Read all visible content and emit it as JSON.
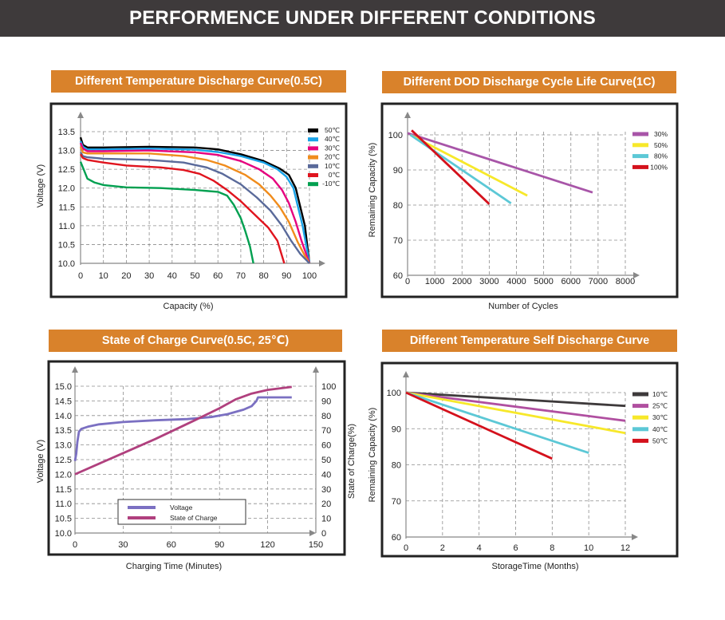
{
  "header": {
    "title": "PERFORMENCE UNDER DIFFERENT CONDITIONS"
  },
  "colors": {
    "banner_bg": "#3e3a3b",
    "title_bg": "#d9822b",
    "s50": "#000000",
    "s40": "#1aa3e8",
    "s30": "#e6007e",
    "s20": "#f08c1c",
    "s10": "#5a6a9a",
    "s0": "#e0141e",
    "sm10": "#00a050",
    "p30": "#a855a8",
    "p50": "#f7e82a",
    "p80": "#5cc8d6",
    "p100": "#d4111c",
    "sd10": "#3e3a3b",
    "sd25": "#b04fa0",
    "sd30": "#f7e82a",
    "sd40": "#5cc8d6",
    "sd50": "#d4111c",
    "voltage_line": "#7b70c2",
    "soc_line": "#b0407e"
  },
  "chart_data": [
    {
      "id": "temp-discharge",
      "type": "line",
      "title": "Different Temperature Discharge Curve(0.5C)",
      "xlabel": "Capacity (%)",
      "ylabel": "Voltage (V)",
      "xlim": [
        0,
        100
      ],
      "ylim": [
        10.0,
        13.5
      ],
      "x_ticks": [
        "0",
        "10",
        "20",
        "30",
        "40",
        "50",
        "60",
        "70",
        "80",
        "90",
        "100"
      ],
      "x_tick_values": [
        0,
        10,
        20,
        30,
        40,
        50,
        60,
        70,
        80,
        90,
        100
      ],
      "y_ticks": [
        "13.5",
        "13.0",
        "12.5",
        "12.0",
        "11.5",
        "11.0",
        "10.5",
        "10.0"
      ],
      "y_tick_values": [
        13.5,
        13.0,
        12.5,
        12.0,
        11.5,
        11.0,
        10.5,
        10.0
      ],
      "series": [
        {
          "name": "50℃",
          "color": "#000000",
          "points": [
            [
              0,
              13.35
            ],
            [
              1,
              13.15
            ],
            [
              3,
              13.08
            ],
            [
              10,
              13.08
            ],
            [
              30,
              13.1
            ],
            [
              50,
              13.08
            ],
            [
              60,
              13.03
            ],
            [
              70,
              12.9
            ],
            [
              80,
              12.72
            ],
            [
              87,
              12.52
            ],
            [
              91,
              12.35
            ],
            [
              94,
              12.0
            ],
            [
              96,
              11.5
            ],
            [
              98,
              11.0
            ],
            [
              99,
              10.5
            ],
            [
              100,
              10.0
            ]
          ]
        },
        {
          "name": "40℃",
          "color": "#1aa3e8",
          "points": [
            [
              0,
              13.25
            ],
            [
              1,
              13.1
            ],
            [
              3,
              13.03
            ],
            [
              10,
              13.03
            ],
            [
              30,
              13.05
            ],
            [
              50,
              13.02
            ],
            [
              60,
              12.96
            ],
            [
              70,
              12.85
            ],
            [
              80,
              12.68
            ],
            [
              86,
              12.5
            ],
            [
              90,
              12.3
            ],
            [
              93,
              12.0
            ],
            [
              95,
              11.5
            ],
            [
              97,
              11.0
            ],
            [
              98.5,
              10.5
            ],
            [
              100,
              10.0
            ]
          ]
        },
        {
          "name": "30℃",
          "color": "#e6007e",
          "points": [
            [
              0,
              13.2
            ],
            [
              1,
              13.05
            ],
            [
              3,
              12.98
            ],
            [
              10,
              12.98
            ],
            [
              30,
              13.0
            ],
            [
              50,
              12.95
            ],
            [
              60,
              12.88
            ],
            [
              70,
              12.72
            ],
            [
              78,
              12.5
            ],
            [
              84,
              12.25
            ],
            [
              88,
              11.95
            ],
            [
              91,
              11.6
            ],
            [
              94,
              11.1
            ],
            [
              96.5,
              10.6
            ],
            [
              100,
              10.0
            ]
          ]
        },
        {
          "name": "20℃",
          "color": "#f08c1c",
          "points": [
            [
              0,
              13.1
            ],
            [
              1,
              12.95
            ],
            [
              3,
              12.92
            ],
            [
              10,
              12.92
            ],
            [
              30,
              12.92
            ],
            [
              45,
              12.85
            ],
            [
              55,
              12.75
            ],
            [
              63,
              12.6
            ],
            [
              72,
              12.35
            ],
            [
              78,
              12.1
            ],
            [
              83,
              11.8
            ],
            [
              87,
              11.5
            ],
            [
              91,
              11.1
            ],
            [
              95,
              10.55
            ],
            [
              98,
              10.2
            ],
            [
              100,
              10.0
            ]
          ]
        },
        {
          "name": "10℃",
          "color": "#5a6a9a",
          "points": [
            [
              0,
              12.95
            ],
            [
              1,
              12.85
            ],
            [
              3,
              12.82
            ],
            [
              10,
              12.78
            ],
            [
              30,
              12.75
            ],
            [
              45,
              12.68
            ],
            [
              55,
              12.55
            ],
            [
              62,
              12.38
            ],
            [
              70,
              12.1
            ],
            [
              77,
              11.75
            ],
            [
              83,
              11.4
            ],
            [
              88,
              11.0
            ],
            [
              92,
              10.6
            ],
            [
              96,
              10.25
            ],
            [
              100,
              10.0
            ]
          ]
        },
        {
          "name": "0℃",
          "color": "#e0141e",
          "points": [
            [
              0,
              12.9
            ],
            [
              1,
              12.8
            ],
            [
              3,
              12.75
            ],
            [
              10,
              12.68
            ],
            [
              20,
              12.6
            ],
            [
              35,
              12.55
            ],
            [
              45,
              12.48
            ],
            [
              52,
              12.38
            ],
            [
              58,
              12.2
            ],
            [
              64,
              11.95
            ],
            [
              70,
              11.65
            ],
            [
              76,
              11.3
            ],
            [
              82,
              10.95
            ],
            [
              86,
              10.6
            ],
            [
              89,
              10.0
            ]
          ]
        },
        {
          "name": "-10℃",
          "color": "#00a050",
          "points": [
            [
              0,
              12.7
            ],
            [
              1,
              12.55
            ],
            [
              3,
              12.25
            ],
            [
              6,
              12.15
            ],
            [
              10,
              12.08
            ],
            [
              20,
              12.02
            ],
            [
              35,
              12.0
            ],
            [
              50,
              11.95
            ],
            [
              60,
              11.9
            ],
            [
              64,
              11.8
            ],
            [
              67,
              11.55
            ],
            [
              70,
              11.2
            ],
            [
              72,
              10.85
            ],
            [
              74,
              10.45
            ],
            [
              75.5,
              10.0
            ]
          ]
        }
      ]
    },
    {
      "id": "dod-cycle",
      "type": "line",
      "title": "Different DOD Discharge Cycle Life Curve(1C)",
      "xlabel": "Number of Cycles",
      "ylabel": "Remaining Capacity (%)",
      "xlim": [
        0,
        8000
      ],
      "ylim": [
        60,
        100
      ],
      "x_ticks": [
        "0",
        "1000",
        "2000",
        "3000",
        "4000",
        "5000",
        "6000",
        "7000",
        "8000"
      ],
      "x_tick_values": [
        0,
        1000,
        2000,
        3000,
        4000,
        5000,
        6000,
        7000,
        8000
      ],
      "y_ticks": [
        "100",
        "90",
        "80",
        "70",
        "60"
      ],
      "y_tick_values": [
        100,
        90,
        80,
        70,
        60
      ],
      "series": [
        {
          "name": "30%",
          "color": "#a855a8",
          "points": [
            [
              0,
              100.5
            ],
            [
              6800,
              83.6
            ]
          ]
        },
        {
          "name": "50%",
          "color": "#f7e82a",
          "points": [
            [
              100,
              100
            ],
            [
              4400,
              82.7
            ]
          ]
        },
        {
          "name": "80%",
          "color": "#5cc8d6",
          "points": [
            [
              100,
              100
            ],
            [
              3800,
              80.5
            ]
          ]
        },
        {
          "name": "100%",
          "color": "#d4111c",
          "points": [
            [
              150,
              101.3
            ],
            [
              3000,
              80.3
            ]
          ]
        }
      ]
    },
    {
      "id": "state-of-charge",
      "type": "line",
      "title": "State of Charge Curve(0.5C, 25℃)",
      "xlabel": "Charging Time (Minutes)",
      "ylabel": "Voltage (V)",
      "y2label": "State of Charge(%)",
      "xlim": [
        0,
        150
      ],
      "ylim": [
        10.0,
        15.0
      ],
      "y2lim": [
        0,
        100
      ],
      "x_ticks": [
        "0",
        "30",
        "60",
        "90",
        "120",
        "150"
      ],
      "x_tick_values": [
        0,
        30,
        60,
        90,
        120,
        150
      ],
      "y_ticks": [
        "15.0",
        "14.5",
        "14.0",
        "13.5",
        "13.0",
        "12.5",
        "12.0",
        "11.5",
        "11.0",
        "10.5",
        "10.0"
      ],
      "y_tick_values": [
        15.0,
        14.5,
        14.0,
        13.5,
        13.0,
        12.5,
        12.0,
        11.5,
        11.0,
        10.5,
        10.0
      ],
      "y2_ticks": [
        "100",
        "90",
        "80",
        "70",
        "60",
        "50",
        "40",
        "30",
        "20",
        "10",
        "0"
      ],
      "y2_tick_values": [
        100,
        90,
        80,
        70,
        60,
        50,
        40,
        30,
        20,
        10,
        0
      ],
      "series": [
        {
          "name": "Voltage",
          "axis": "left",
          "color": "#7b70c2",
          "points": [
            [
              0,
              12.45
            ],
            [
              0.8,
              12.7
            ],
            [
              1.5,
              13.1
            ],
            [
              2.5,
              13.45
            ],
            [
              4,
              13.55
            ],
            [
              8,
              13.62
            ],
            [
              15,
              13.7
            ],
            [
              30,
              13.78
            ],
            [
              50,
              13.84
            ],
            [
              70,
              13.88
            ],
            [
              85,
              13.95
            ],
            [
              95,
              14.05
            ],
            [
              105,
              14.2
            ],
            [
              110,
              14.32
            ],
            [
              113,
              14.5
            ],
            [
              114,
              14.62
            ],
            [
              120,
              14.62
            ],
            [
              121,
              14.62
            ],
            [
              135,
              14.62
            ]
          ]
        },
        {
          "name": "State of Charge",
          "axis": "right",
          "color": "#b0407e",
          "points": [
            [
              0,
              40
            ],
            [
              25,
              52
            ],
            [
              50,
              64
            ],
            [
              75,
              77
            ],
            [
              90,
              85
            ],
            [
              100,
              91
            ],
            [
              110,
              95
            ],
            [
              120,
              97.5
            ],
            [
              135,
              99.5
            ]
          ]
        }
      ]
    },
    {
      "id": "self-discharge",
      "type": "line",
      "title": "Different Temperature Self Discharge Curve",
      "xlabel": "StorageTime (Months)",
      "ylabel": "Remaining Capacity (%)",
      "xlim": [
        0,
        12
      ],
      "ylim": [
        60,
        100
      ],
      "x_ticks": [
        "0",
        "2",
        "4",
        "6",
        "8",
        "10",
        "12"
      ],
      "x_tick_values": [
        0,
        2,
        4,
        6,
        8,
        10,
        12
      ],
      "y_ticks": [
        "100",
        "90",
        "80",
        "70",
        "60"
      ],
      "y_tick_values": [
        100,
        90,
        80,
        70,
        60
      ],
      "series": [
        {
          "name": "10℃",
          "color": "#3e3a3b",
          "points": [
            [
              0,
              100
            ],
            [
              12,
              96.3
            ]
          ]
        },
        {
          "name": "25℃",
          "color": "#b04fa0",
          "points": [
            [
              0,
              100
            ],
            [
              12,
              92.2
            ]
          ]
        },
        {
          "name": "30℃",
          "color": "#f7e82a",
          "points": [
            [
              0,
              100
            ],
            [
              12,
              88.8
            ]
          ]
        },
        {
          "name": "40℃",
          "color": "#5cc8d6",
          "points": [
            [
              0,
              100
            ],
            [
              10,
              83.3
            ]
          ]
        },
        {
          "name": "50℃",
          "color": "#d4111c",
          "points": [
            [
              0,
              100
            ],
            [
              8,
              81.7
            ]
          ]
        }
      ]
    }
  ]
}
